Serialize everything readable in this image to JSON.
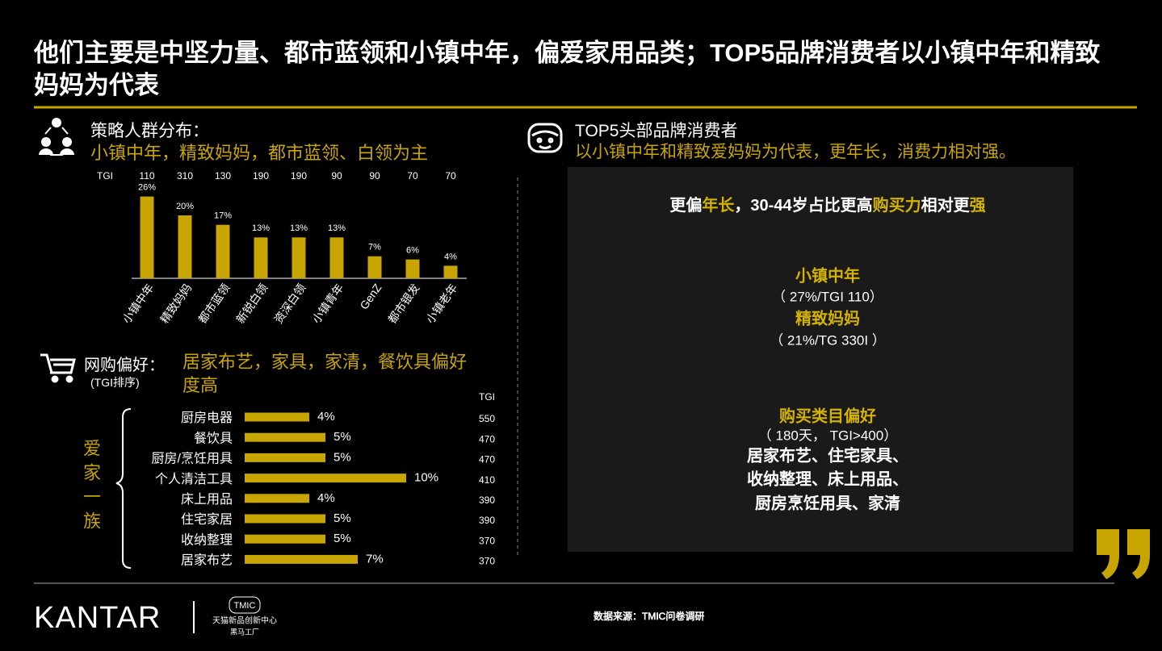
{
  "title": "他们主要是中坚力量、都市蓝领和小镇中年，偏爱家用品类；TOP5品牌消费者以小镇中年和精致妈妈为代表",
  "left_top": {
    "heading": "策略人群分布：",
    "subheading": "小镇中年，精致妈妈，都市蓝领、白领为主"
  },
  "left_bottom": {
    "heading": "网购偏好：",
    "note": "(TGI排序)",
    "subheading": "居家布艺，家具，家清，餐饮具偏好度高",
    "group_label": "爱家一族"
  },
  "chart_data": [
    {
      "type": "bar",
      "color": "#c8a500",
      "categories": [
        "小镇中年",
        "精致妈妈",
        "都市蓝领",
        "新锐白领",
        "资深白领",
        "小镇青年",
        "GenZ",
        "都市银发",
        "小镇老年"
      ],
      "values": [
        26,
        20,
        17,
        13,
        13,
        13,
        7,
        6,
        4
      ],
      "value_labels": [
        "26%",
        "20%",
        "17%",
        "13%",
        "13%",
        "13%",
        "7%",
        "6%",
        "4%"
      ],
      "tgi_label": "TGI",
      "tgi": [
        110,
        310,
        130,
        190,
        190,
        90,
        90,
        70,
        70
      ]
    },
    {
      "type": "hbar",
      "color": "#c8a500",
      "categories": [
        "厨房电器",
        "餐饮具",
        "厨房/烹饪用具",
        "个人清洁工具",
        "床上用品",
        "住宅家居",
        "收纳整理",
        "居家布艺"
      ],
      "values": [
        4,
        5,
        5,
        10,
        4,
        5,
        5,
        7
      ],
      "value_labels": [
        "4%",
        "5%",
        "5%",
        "10%",
        "4%",
        "5%",
        "5%",
        "7%"
      ],
      "tgi_label": "TGI",
      "tgi": [
        550,
        470,
        470,
        410,
        390,
        390,
        370,
        370
      ]
    }
  ],
  "right": {
    "heading": "TOP5头部品牌消费者",
    "subheading": "以小镇中年和精致爱妈妈为代表，更年长，消费力相对强。",
    "headline": [
      {
        "text": "更偏",
        "highlight": false
      },
      {
        "text": "年长",
        "highlight": true
      },
      {
        "text": "，30-44岁占比更高",
        "highlight": false
      },
      {
        "text": "购买力",
        "highlight": true
      },
      {
        "text": "相对更",
        "highlight": false
      },
      {
        "text": "强",
        "highlight": true
      }
    ],
    "items": [
      {
        "text": "小镇中年",
        "style": "accent"
      },
      {
        "text": "（ 27%/TGI 110）",
        "style": "note"
      },
      {
        "text": "精致妈妈",
        "style": "accent"
      },
      {
        "text": "（ 21%/TG 330I ）",
        "style": "note"
      },
      {
        "text": "购买类目偏好",
        "style": "accent"
      },
      {
        "text": "（ 180天， TGI>400）",
        "style": "note"
      },
      {
        "text": "居家布艺、住宅家具、",
        "style": "body"
      },
      {
        "text": "收纳整理、床上用品、",
        "style": "body"
      },
      {
        "text": "厨房烹饪用具、家清",
        "style": "body"
      }
    ]
  },
  "footer": {
    "brand": "KANTAR",
    "logo": "TMIC",
    "logo_line1": "天猫新品创新中心",
    "logo_line2": "黑马工厂",
    "source": "数据来源：TMIC问卷调研"
  }
}
